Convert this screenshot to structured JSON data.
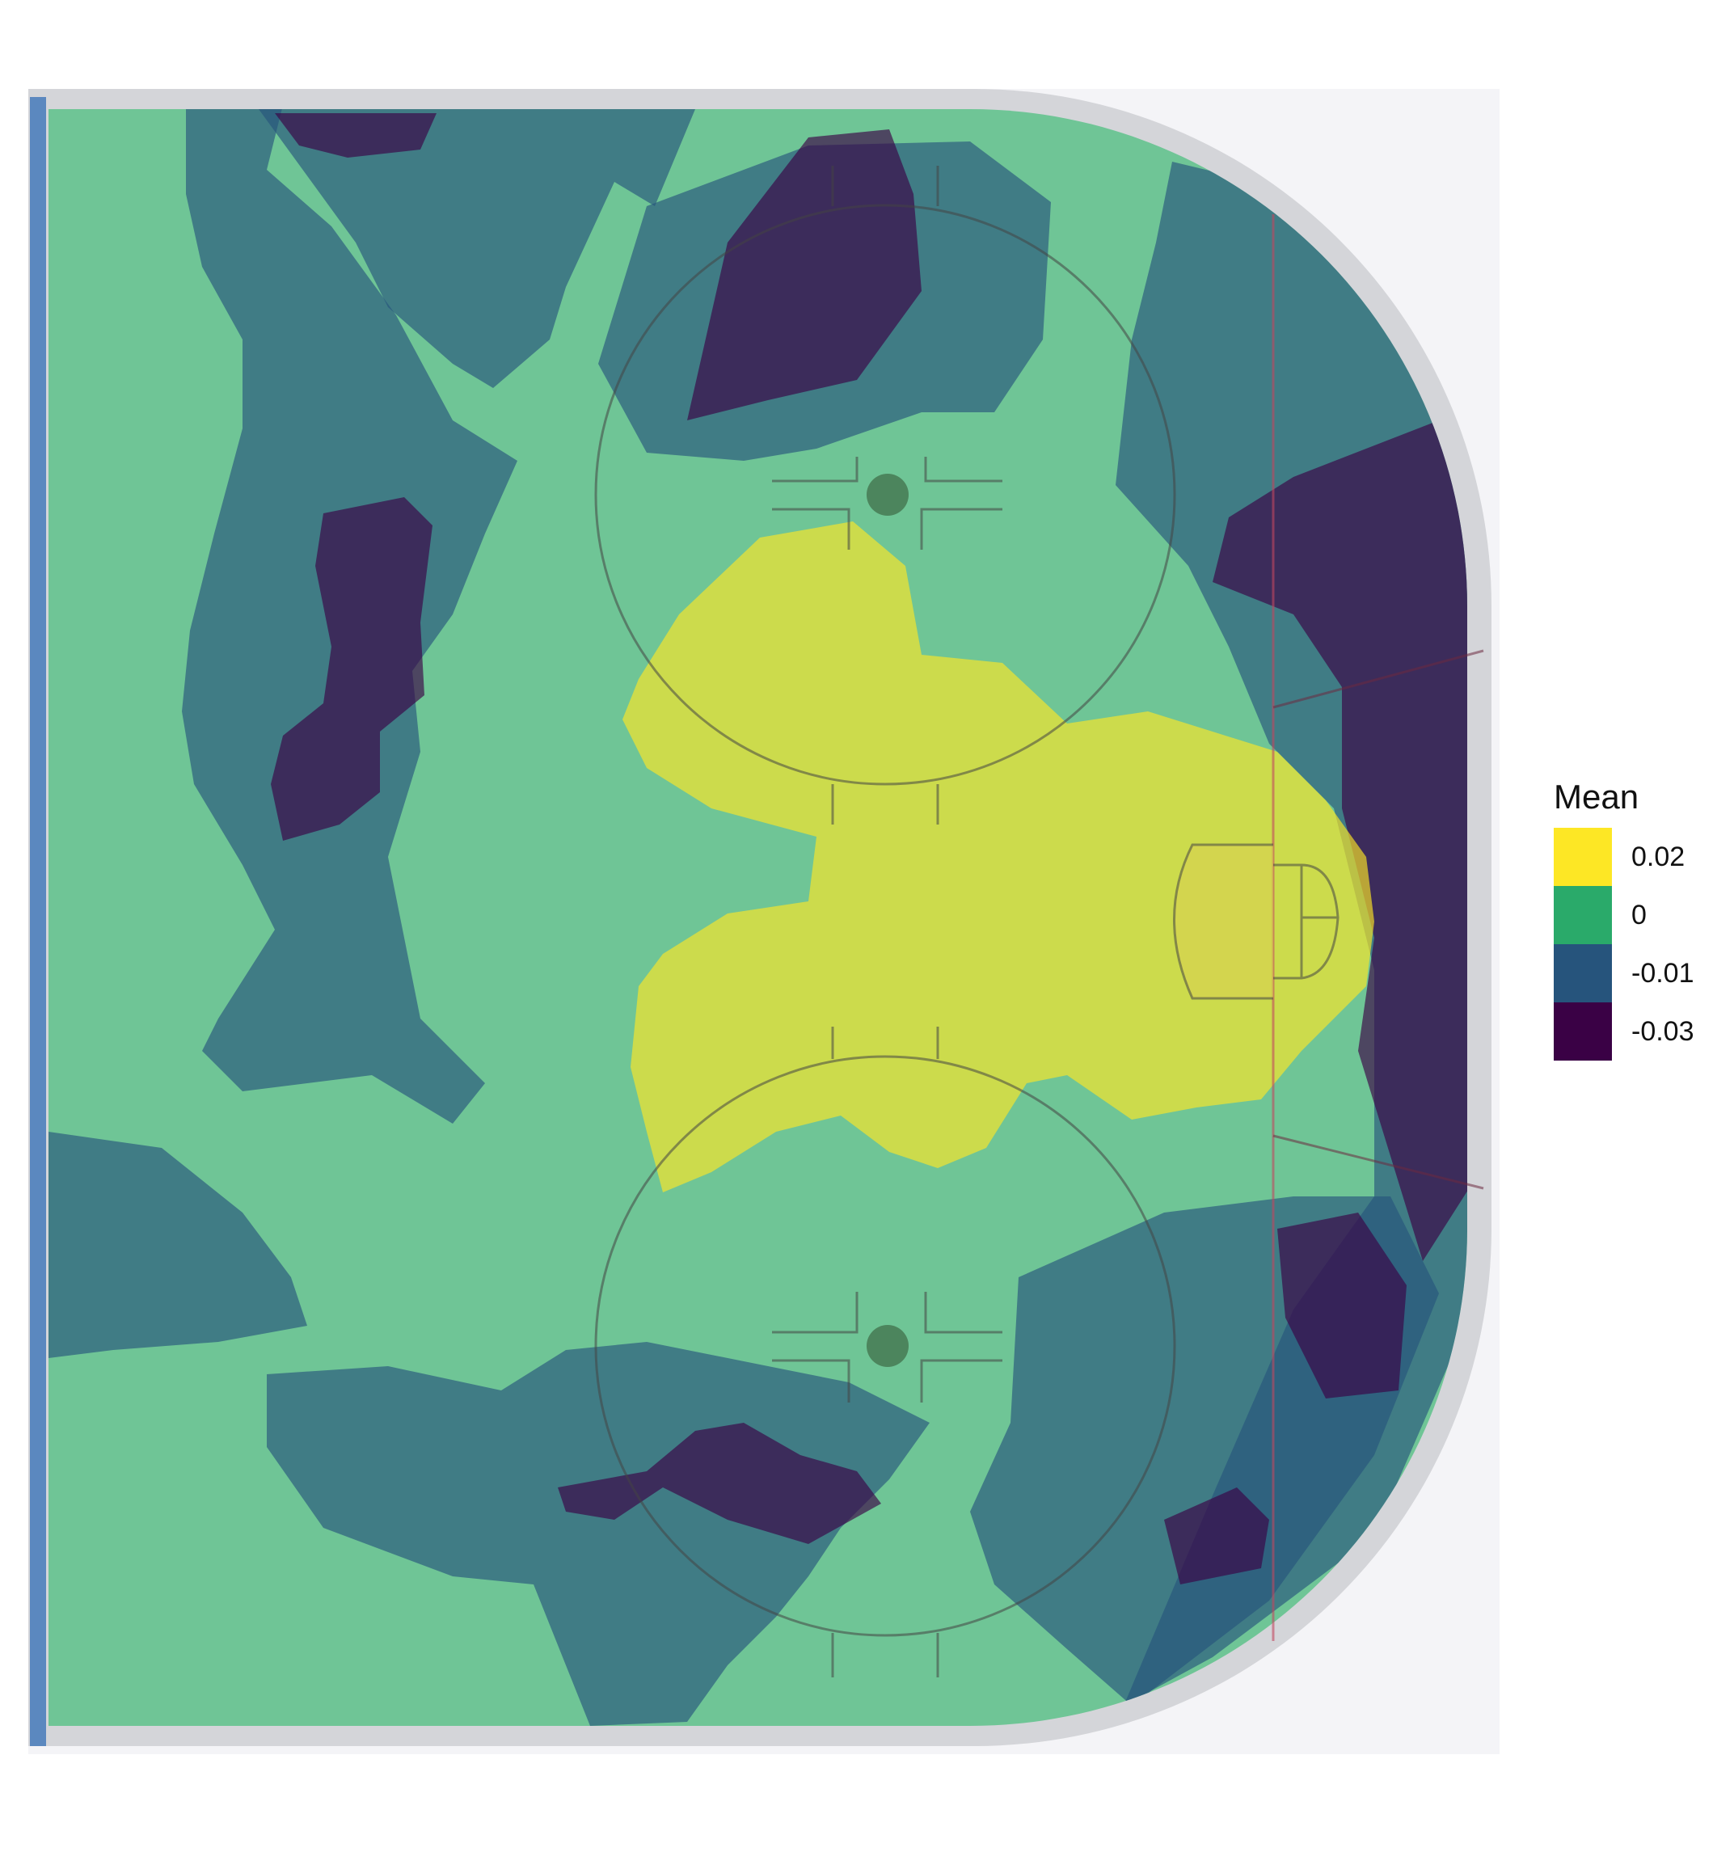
{
  "chart_data": {
    "type": "heatmap",
    "title": "",
    "xlabel": "",
    "ylabel": "",
    "background": "offensive zone half-rink diagram",
    "legend": {
      "title": "Mean",
      "position": "right",
      "entries": [
        {
          "label": "0.02",
          "value": 0.02,
          "color": "#FDE725"
        },
        {
          "label": "0",
          "value": 0,
          "color": "#2AAA6A"
        },
        {
          "label": "-0.01",
          "value": -0.01,
          "color": "#26547C"
        },
        {
          "label": "-0.03",
          "value": -0.03,
          "color": "#3A0145"
        }
      ]
    },
    "regions": [
      {
        "level": "-0.01",
        "description": "left side band"
      },
      {
        "level": "-0.03",
        "description": "left slot pocket"
      },
      {
        "level": "-0.01",
        "description": "top-left edge"
      },
      {
        "level": "-0.03",
        "description": "top-left edge pocket"
      },
      {
        "level": "-0.01",
        "description": "upper faceoff circle"
      },
      {
        "level": "-0.03",
        "description": "upper faceoff circle pocket"
      },
      {
        "level": "-0.01",
        "description": "upper right corner"
      },
      {
        "level": "-0.03",
        "description": "right end boards"
      },
      {
        "level": "-0.01",
        "description": "bottom-left corner"
      },
      {
        "level": "-0.01",
        "description": "bottom band"
      },
      {
        "level": "-0.03",
        "description": "lower faceoff circle pocket"
      },
      {
        "level": "-0.01",
        "description": "lower right corner"
      },
      {
        "level": "-0.03",
        "description": "lower right pocket"
      },
      {
        "level": "-0.03",
        "description": "lower right small pocket"
      },
      {
        "level": "0.02",
        "description": "slot and crease"
      }
    ]
  }
}
